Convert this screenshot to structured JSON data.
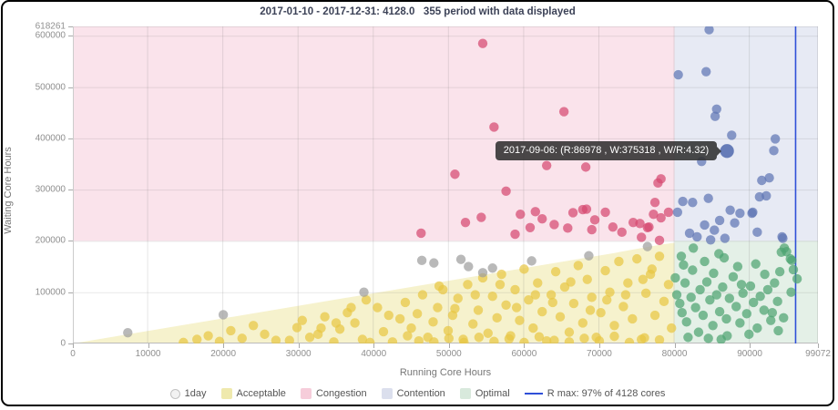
{
  "title": "2017-01-10 - 2017-12-31: 4128.0   355 period with data displayed",
  "axes": {
    "x_label": "Running Core Hours",
    "y_label": "Waiting Core Hours"
  },
  "tooltip": {
    "text": "2017-09-06: (R:86978 , W:375318 , W/R:4.32)",
    "point": [
      86978,
      375318
    ]
  },
  "legend": {
    "items": [
      {
        "label": "1day",
        "swatch": "circle",
        "color": "#f2f2f2"
      },
      {
        "label": "Acceptable",
        "swatch": "square",
        "color": "#efe9ad"
      },
      {
        "label": "Congestion",
        "swatch": "square",
        "color": "#f6cdda"
      },
      {
        "label": "Contention",
        "swatch": "square",
        "color": "#dbdfed"
      },
      {
        "label": "Optimal",
        "swatch": "square",
        "color": "#d8e9dc"
      },
      {
        "label": "R max: 97% of 4128 cores",
        "swatch": "line",
        "color": "#2f4fd8"
      }
    ]
  },
  "chart_data": {
    "type": "scatter",
    "xlim": [
      0,
      99072
    ],
    "ylim": [
      0,
      618261
    ],
    "x_ticks": [
      0,
      10000,
      20000,
      30000,
      40000,
      50000,
      60000,
      70000,
      80000,
      90000,
      99072
    ],
    "y_ticks": [
      0,
      100000,
      200000,
      300000,
      400000,
      500000,
      600000,
      618261
    ],
    "grid": true,
    "regions": [
      {
        "name": "congestion",
        "color": "#fae3eb",
        "x": [
          0,
          80000
        ],
        "y": [
          200000,
          618261
        ]
      },
      {
        "name": "contention",
        "color": "#e7eaf4",
        "x": [
          80000,
          99072
        ],
        "y": [
          200000,
          618261
        ]
      },
      {
        "name": "optimal",
        "color": "#e4f0e7",
        "x": [
          80000,
          99072
        ],
        "y": [
          0,
          200000
        ]
      },
      {
        "name": "acceptable",
        "color": "#f6f2cd",
        "shape": "triangle",
        "apex": [
          80000,
          196000
        ],
        "slope": 2.45
      }
    ],
    "rmax_line": {
      "x_value": 96100,
      "color": "#2f4fd8",
      "label": "R max: 97% of 4128 cores"
    },
    "highlight": {
      "x": 86978,
      "y": 375318,
      "color": "#5f76b4"
    },
    "series": [
      {
        "name": "congestion-days",
        "color": "#d64a70",
        "points": [
          [
            54500,
            585000
          ],
          [
            56000,
            422000
          ],
          [
            65300,
            452000
          ],
          [
            50800,
            330000
          ],
          [
            63000,
            347000
          ],
          [
            68200,
            344000
          ],
          [
            57600,
            297000
          ],
          [
            77800,
            313000
          ],
          [
            78200,
            321000
          ],
          [
            67800,
            261000
          ],
          [
            46300,
            215000
          ],
          [
            52200,
            236000
          ],
          [
            54300,
            246000
          ],
          [
            59500,
            252000
          ],
          [
            61500,
            257000
          ],
          [
            62400,
            243000
          ],
          [
            64000,
            232000
          ],
          [
            65800,
            225000
          ],
          [
            66500,
            255000
          ],
          [
            68300,
            262000
          ],
          [
            69400,
            241000
          ],
          [
            70800,
            256000
          ],
          [
            71800,
            227000
          ],
          [
            73000,
            217000
          ],
          [
            74500,
            236000
          ],
          [
            75600,
            207000
          ],
          [
            76600,
            227000
          ],
          [
            78000,
            201000
          ],
          [
            77200,
            252000
          ],
          [
            69000,
            222000
          ],
          [
            60800,
            226000
          ],
          [
            58800,
            213000
          ],
          [
            77400,
            275000
          ],
          [
            79200,
            256000
          ],
          [
            78200,
            245000
          ],
          [
            75400,
            234000
          ],
          [
            76400,
            226000
          ]
        ]
      },
      {
        "name": "contention-days",
        "color": "#5f76b4",
        "points": [
          [
            84600,
            612000
          ],
          [
            80500,
            524000
          ],
          [
            84200,
            530000
          ],
          [
            85600,
            457000
          ],
          [
            85400,
            443000
          ],
          [
            87600,
            406000
          ],
          [
            93400,
            399000
          ],
          [
            93200,
            376000
          ],
          [
            83600,
            355000
          ],
          [
            91600,
            318000
          ],
          [
            92600,
            323000
          ],
          [
            91300,
            286000
          ],
          [
            92200,
            288000
          ],
          [
            81100,
            277000
          ],
          [
            82400,
            275000
          ],
          [
            84500,
            283000
          ],
          [
            80400,
            256000
          ],
          [
            87400,
            260000
          ],
          [
            88700,
            254000
          ],
          [
            90300,
            254000
          ],
          [
            84000,
            231000
          ],
          [
            82000,
            215000
          ],
          [
            83000,
            208000
          ],
          [
            85300,
            221000
          ],
          [
            86700,
            205000
          ],
          [
            91000,
            217000
          ],
          [
            94300,
            208000
          ],
          [
            84800,
            202000
          ],
          [
            94400,
            205000
          ],
          [
            90400,
            256000
          ],
          [
            88000,
            235000
          ],
          [
            86000,
            240000
          ]
        ]
      },
      {
        "name": "optimal-days",
        "color": "#4ea471",
        "points": [
          [
            82500,
            186000
          ],
          [
            81200,
            153000
          ],
          [
            85200,
            137000
          ],
          [
            80100,
            128000
          ],
          [
            81400,
            118000
          ],
          [
            86600,
            167000
          ],
          [
            94600,
            186000
          ],
          [
            94200,
            178000
          ],
          [
            94900,
            179000
          ],
          [
            95400,
            165000
          ],
          [
            95600,
            162000
          ],
          [
            95800,
            144000
          ],
          [
            96300,
            126000
          ],
          [
            95500,
            100000
          ],
          [
            93700,
            82000
          ],
          [
            94500,
            50000
          ],
          [
            80300,
            95000
          ],
          [
            80700,
            78000
          ],
          [
            81000,
            60000
          ],
          [
            81600,
            42000
          ],
          [
            82200,
            90000
          ],
          [
            82800,
            70000
          ],
          [
            83400,
            105000
          ],
          [
            83800,
            55000
          ],
          [
            84300,
            120000
          ],
          [
            84700,
            85000
          ],
          [
            85100,
            35000
          ],
          [
            85600,
            95000
          ],
          [
            86000,
            62000
          ],
          [
            86400,
            110000
          ],
          [
            86900,
            48000
          ],
          [
            87300,
            88000
          ],
          [
            87800,
            130000
          ],
          [
            88200,
            72000
          ],
          [
            88700,
            40000
          ],
          [
            89100,
            98000
          ],
          [
            89600,
            58000
          ],
          [
            90100,
            112000
          ],
          [
            90500,
            80000
          ],
          [
            91000,
            30000
          ],
          [
            91400,
            92000
          ],
          [
            91900,
            65000
          ],
          [
            92400,
            105000
          ],
          [
            92800,
            45000
          ],
          [
            93300,
            118000
          ],
          [
            93800,
            25000
          ],
          [
            88400,
            150000
          ],
          [
            84000,
            160000
          ],
          [
            82400,
            143000
          ],
          [
            80900,
            170000
          ],
          [
            87000,
            15000
          ],
          [
            89900,
            18000
          ],
          [
            83200,
            22000
          ],
          [
            92000,
            135000
          ],
          [
            85900,
            175000
          ],
          [
            90800,
            155000
          ],
          [
            81800,
            12000
          ],
          [
            86200,
            8000
          ],
          [
            94000,
            140000
          ],
          [
            88900,
            115000
          ],
          [
            84500,
            10000
          ],
          [
            93000,
            60000
          ]
        ]
      },
      {
        "name": "acceptable-days",
        "color": "#e8c644",
        "points": [
          [
            14700,
            2000
          ],
          [
            16500,
            8000
          ],
          [
            18000,
            15000
          ],
          [
            19500,
            4000
          ],
          [
            21000,
            25000
          ],
          [
            22500,
            10000
          ],
          [
            24000,
            35000
          ],
          [
            25500,
            18000
          ],
          [
            27000,
            6000
          ],
          [
            28800,
            6000
          ],
          [
            29800,
            31000
          ],
          [
            30500,
            45000
          ],
          [
            31500,
            12000
          ],
          [
            32600,
            18000
          ],
          [
            33500,
            52000
          ],
          [
            34700,
            3000
          ],
          [
            35500,
            28000
          ],
          [
            36500,
            60000
          ],
          [
            37500,
            40000
          ],
          [
            38500,
            8000
          ],
          [
            39500,
            2000
          ],
          [
            40500,
            70000
          ],
          [
            41300,
            23000
          ],
          [
            42500,
            3000
          ],
          [
            43500,
            48000
          ],
          [
            44200,
            80000
          ],
          [
            45000,
            30000
          ],
          [
            45800,
            58000
          ],
          [
            46500,
            95000
          ],
          [
            47200,
            12000
          ],
          [
            47900,
            42000
          ],
          [
            48500,
            70000
          ],
          [
            49200,
            105000
          ],
          [
            49900,
            25000
          ],
          [
            50500,
            55000
          ],
          [
            51200,
            88000
          ],
          [
            51900,
            8000
          ],
          [
            52500,
            115000
          ],
          [
            53200,
            38000
          ],
          [
            53900,
            65000
          ],
          [
            54500,
            128000
          ],
          [
            55200,
            20000
          ],
          [
            55800,
            92000
          ],
          [
            56400,
            50000
          ],
          [
            57000,
            135000
          ],
          [
            57600,
            75000
          ],
          [
            58200,
            15000
          ],
          [
            58800,
            105000
          ],
          [
            59400,
            45000
          ],
          [
            60000,
            145000
          ],
          [
            60600,
            85000
          ],
          [
            61200,
            30000
          ],
          [
            61800,
            118000
          ],
          [
            62400,
            62000
          ],
          [
            63000,
            5000
          ],
          [
            63600,
            95000
          ],
          [
            64200,
            140000
          ],
          [
            64800,
            52000
          ],
          [
            65400,
            110000
          ],
          [
            66000,
            22000
          ],
          [
            66600,
            78000
          ],
          [
            67200,
            152000
          ],
          [
            67800,
            40000
          ],
          [
            68400,
            125000
          ],
          [
            69000,
            90000
          ],
          [
            69600,
            12000
          ],
          [
            70200,
            60000
          ],
          [
            70800,
            142000
          ],
          [
            71400,
            100000
          ],
          [
            72000,
            35000
          ],
          [
            72600,
            160000
          ],
          [
            73200,
            72000
          ],
          [
            73800,
            118000
          ],
          [
            74400,
            48000
          ],
          [
            75000,
            165000
          ],
          [
            75600,
            8000
          ],
          [
            76200,
            98000
          ],
          [
            76800,
            135000
          ],
          [
            77400,
            55000
          ],
          [
            78000,
            170000
          ],
          [
            78600,
            82000
          ],
          [
            79200,
            115000
          ],
          [
            79600,
            30000
          ],
          [
            46000,
            5000
          ],
          [
            48000,
            3000
          ],
          [
            50000,
            10000
          ],
          [
            52000,
            2000
          ],
          [
            54000,
            12000
          ],
          [
            56000,
            4000
          ],
          [
            58000,
            9000
          ],
          [
            60000,
            2000
          ],
          [
            62000,
            13000
          ],
          [
            64000,
            6000
          ],
          [
            66000,
            3000
          ],
          [
            68000,
            10000
          ],
          [
            70000,
            5000
          ],
          [
            72000,
            14000
          ],
          [
            74000,
            2000
          ],
          [
            76000,
            11000
          ],
          [
            78000,
            7000
          ],
          [
            50800,
            68000
          ],
          [
            53500,
            95000
          ],
          [
            56800,
            115000
          ],
          [
            59000,
            70000
          ],
          [
            61500,
            95000
          ],
          [
            63800,
            80000
          ],
          [
            66200,
            120000
          ],
          [
            68800,
            65000
          ],
          [
            71000,
            85000
          ],
          [
            73500,
            95000
          ],
          [
            75800,
            125000
          ],
          [
            77000,
            145000
          ],
          [
            44500,
            15000
          ],
          [
            42000,
            55000
          ],
          [
            39000,
            85000
          ],
          [
            37000,
            70000
          ],
          [
            35000,
            40000
          ],
          [
            33000,
            30000
          ],
          [
            48700,
            112000
          ]
        ]
      },
      {
        "name": "uncategorized-days",
        "color": "#9e9e9e",
        "points": [
          [
            7300,
            21000
          ],
          [
            20000,
            56000
          ],
          [
            38700,
            100000
          ],
          [
            46400,
            162000
          ],
          [
            51600,
            164000
          ],
          [
            52600,
            150000
          ],
          [
            54500,
            138000
          ],
          [
            55800,
            147000
          ],
          [
            61000,
            161000
          ],
          [
            68600,
            171000
          ],
          [
            76400,
            189000
          ],
          [
            48000,
            157000
          ]
        ]
      }
    ]
  }
}
